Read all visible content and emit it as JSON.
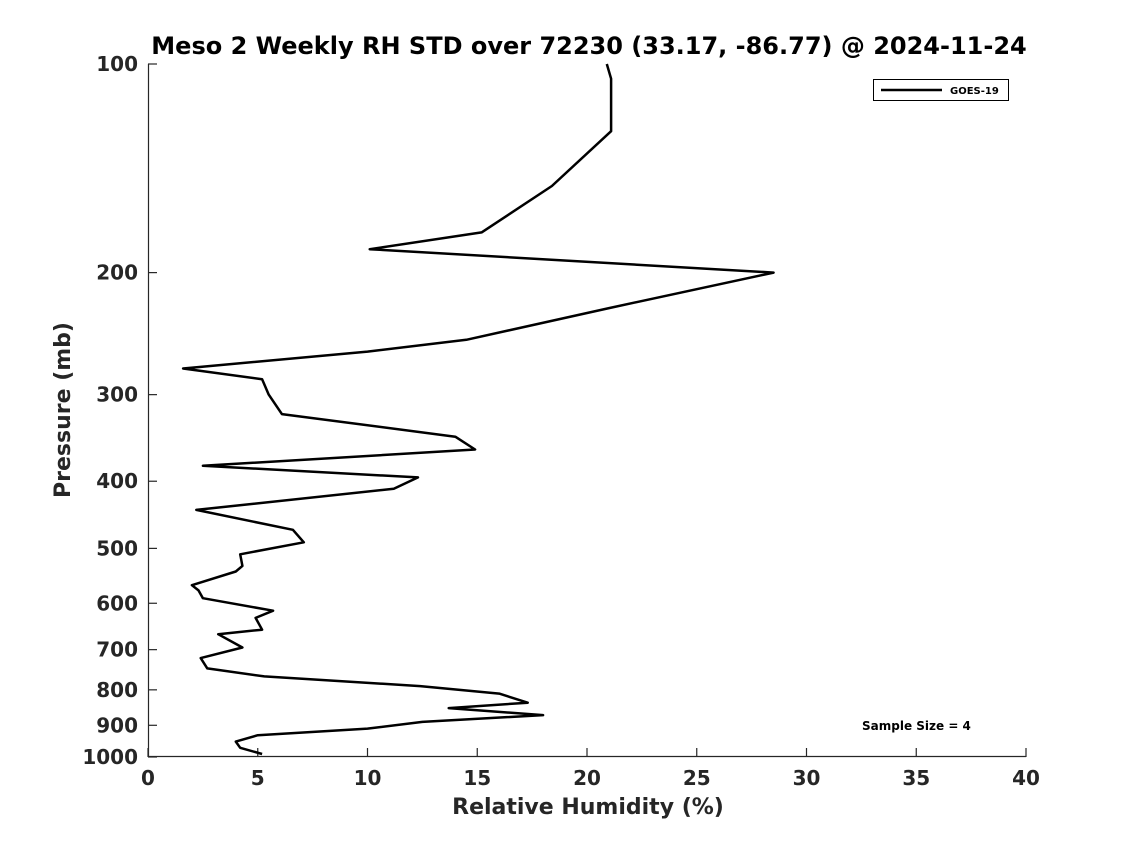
{
  "chart_data": {
    "type": "line",
    "title": "Meso 2 Weekly RH STD over 72230 (33.17, -86.77) @ 2024-11-24",
    "xlabel": "Relative Humidity (%)",
    "ylabel": "Pressure (mb)",
    "xlim": [
      0,
      40
    ],
    "ylim": [
      100,
      1000
    ],
    "y_scale": "log",
    "y_reversed": true,
    "grid": false,
    "legend_position": "top-right",
    "x_ticks": [
      "0",
      "5",
      "10",
      "15",
      "20",
      "25",
      "30",
      "35",
      "40"
    ],
    "y_ticks": [
      "100",
      "200",
      "300",
      "400",
      "500",
      "600",
      "700",
      "800",
      "900",
      "1000"
    ],
    "annotation": "Sample Size = 4",
    "series": [
      {
        "name": "GOES-19",
        "color": "#000000",
        "x": [
          20.9,
          21.1,
          21.1,
          18.4,
          15.2,
          10.1,
          28.5,
          21.0,
          14.5,
          10.0,
          1.6,
          5.2,
          5.5,
          6.1,
          14.0,
          14.9,
          2.5,
          12.3,
          11.2,
          2.2,
          6.6,
          7.1,
          4.2,
          4.3,
          4.0,
          2.0,
          2.3,
          2.5,
          5.7,
          4.9,
          5.2,
          3.2,
          4.3,
          2.4,
          2.7,
          5.3,
          12.4,
          16.0,
          17.3,
          13.7,
          18.0,
          12.5,
          10.0,
          5.0,
          4.0,
          4.2,
          5.2
        ],
        "y": [
          100,
          105,
          125,
          150,
          175,
          185,
          200,
          225,
          250,
          260,
          275,
          285,
          300,
          320,
          345,
          360,
          380,
          395,
          410,
          440,
          470,
          490,
          510,
          530,
          540,
          565,
          575,
          590,
          615,
          630,
          655,
          665,
          695,
          720,
          745,
          765,
          790,
          810,
          835,
          850,
          870,
          890,
          910,
          930,
          950,
          970,
          990
        ]
      }
    ]
  }
}
